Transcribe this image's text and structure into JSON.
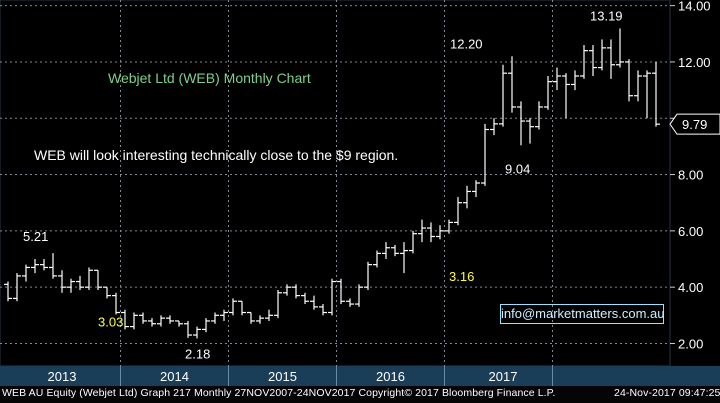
{
  "chart_data": {
    "type": "ohlc",
    "title": "Webjet Ltd (WEB) Monthly Chart",
    "commentary": "WEB will look interesting technically close to the $9 region.",
    "ylim": [
      1.2,
      14.2
    ],
    "y_ticks": [
      "2.00",
      "4.00",
      "6.00",
      "8.00",
      "10.00",
      "12.00",
      "14.00"
    ],
    "x_categories": [
      "2013",
      "2014",
      "2015",
      "2016",
      "2017"
    ],
    "grid": true,
    "last_price": "9.79",
    "annotations": [
      {
        "text": "5.21",
        "value": 5.21,
        "color": "#ffffff"
      },
      {
        "text": "3.03",
        "value": 3.03,
        "color": "#ffff33"
      },
      {
        "text": "2.18",
        "value": 2.18,
        "color": "#ffffff"
      },
      {
        "text": "12.20",
        "value": 12.2,
        "color": "#ffffff"
      },
      {
        "text": "3.16",
        "value": 3.16,
        "color": "#ffff33"
      },
      {
        "text": "9.04",
        "value": 9.04,
        "color": "#ffffff"
      },
      {
        "text": "13.19",
        "value": 13.19,
        "color": "#ffffff"
      }
    ],
    "bars": [
      [
        4.1,
        4.2,
        3.5,
        3.6
      ],
      [
        3.6,
        4.5,
        3.5,
        4.4
      ],
      [
        4.4,
        4.8,
        4.2,
        4.7
      ],
      [
        4.7,
        5.0,
        4.5,
        4.8
      ],
      [
        4.8,
        5.0,
        4.6,
        4.7
      ],
      [
        4.7,
        5.21,
        4.3,
        4.4
      ],
      [
        4.4,
        4.6,
        3.8,
        4.0
      ],
      [
        4.0,
        4.3,
        3.8,
        4.2
      ],
      [
        4.2,
        4.4,
        3.9,
        4.0
      ],
      [
        4.0,
        4.7,
        3.9,
        4.6
      ],
      [
        4.6,
        4.6,
        3.9,
        4.0
      ],
      [
        4.0,
        4.0,
        3.6,
        3.7
      ],
      [
        3.7,
        3.8,
        3.03,
        3.1
      ],
      [
        3.1,
        3.2,
        2.5,
        2.6
      ],
      [
        2.6,
        3.1,
        2.5,
        3.0
      ],
      [
        3.0,
        3.1,
        2.7,
        2.8
      ],
      [
        2.8,
        2.9,
        2.6,
        2.7
      ],
      [
        2.7,
        3.0,
        2.6,
        2.9
      ],
      [
        2.9,
        3.0,
        2.7,
        2.8
      ],
      [
        2.8,
        2.8,
        2.6,
        2.7
      ],
      [
        2.7,
        2.8,
        2.2,
        2.3
      ],
      [
        2.3,
        2.6,
        2.18,
        2.5
      ],
      [
        2.5,
        2.9,
        2.4,
        2.8
      ],
      [
        2.8,
        3.1,
        2.7,
        3.0
      ],
      [
        3.0,
        3.2,
        2.8,
        3.1
      ],
      [
        3.1,
        3.6,
        3.0,
        3.5
      ],
      [
        3.5,
        3.5,
        3.0,
        3.1
      ],
      [
        3.1,
        3.1,
        2.7,
        2.8
      ],
      [
        2.8,
        3.0,
        2.7,
        2.9
      ],
      [
        2.9,
        3.2,
        2.8,
        3.0
      ],
      [
        3.0,
        3.9,
        2.9,
        3.8
      ],
      [
        3.8,
        4.1,
        3.7,
        4.0
      ],
      [
        4.0,
        4.1,
        3.6,
        3.7
      ],
      [
        3.7,
        3.8,
        3.4,
        3.5
      ],
      [
        3.5,
        3.7,
        3.2,
        3.3
      ],
      [
        3.3,
        3.4,
        3.0,
        3.1
      ],
      [
        3.1,
        4.3,
        3.0,
        4.2
      ],
      [
        4.2,
        4.3,
        3.4,
        3.5
      ],
      [
        3.5,
        3.6,
        3.3,
        3.4
      ],
      [
        3.4,
        4.1,
        3.3,
        4.0
      ],
      [
        4.0,
        4.9,
        3.9,
        4.8
      ],
      [
        4.8,
        5.3,
        4.7,
        5.2
      ],
      [
        5.2,
        5.6,
        5.0,
        5.4
      ],
      [
        5.4,
        5.5,
        5.1,
        5.2
      ],
      [
        5.2,
        5.6,
        4.5,
        5.3
      ],
      [
        5.3,
        6.0,
        5.2,
        5.9
      ],
      [
        5.9,
        6.4,
        5.6,
        6.1
      ],
      [
        6.1,
        6.3,
        5.6,
        5.8
      ],
      [
        5.8,
        6.2,
        5.7,
        6.0
      ],
      [
        6.0,
        6.4,
        5.9,
        6.3
      ],
      [
        6.3,
        7.2,
        6.2,
        7.0
      ],
      [
        7.0,
        7.6,
        6.8,
        7.4
      ],
      [
        7.4,
        7.8,
        7.2,
        7.7
      ],
      [
        7.7,
        9.8,
        7.6,
        9.6
      ],
      [
        9.6,
        10.0,
        9.4,
        9.8
      ],
      [
        9.8,
        11.9,
        9.7,
        11.6
      ],
      [
        11.6,
        12.2,
        10.2,
        10.4
      ],
      [
        10.4,
        10.6,
        9.04,
        9.9
      ],
      [
        9.9,
        10.0,
        9.1,
        9.7
      ],
      [
        9.7,
        10.6,
        9.6,
        10.4
      ],
      [
        10.4,
        11.5,
        10.3,
        11.3
      ],
      [
        11.3,
        11.8,
        11.0,
        11.5
      ],
      [
        11.5,
        11.6,
        10.0,
        11.2
      ],
      [
        11.2,
        11.7,
        11.0,
        11.5
      ],
      [
        11.5,
        12.6,
        11.4,
        12.4
      ],
      [
        12.4,
        12.6,
        11.5,
        11.8
      ],
      [
        11.8,
        12.8,
        11.7,
        12.5
      ],
      [
        12.5,
        12.8,
        11.4,
        11.9
      ],
      [
        11.9,
        13.19,
        11.8,
        12.0
      ],
      [
        12.0,
        12.1,
        10.6,
        10.8
      ],
      [
        10.8,
        11.7,
        10.6,
        11.5
      ],
      [
        11.5,
        11.7,
        10.0,
        11.6
      ],
      [
        11.6,
        12.0,
        9.7,
        9.79
      ]
    ]
  },
  "footer": {
    "left": "WEB AU Equity (Webjet Ltd) Graph 217  Monthly 27NOV2007-24NOV2017   Copyright© 2017 Bloomberg Finance L.P.",
    "right": "24-Nov-2017 09:47:25"
  },
  "contact": {
    "email": "info@marketmatters.com.au"
  },
  "colors": {
    "background": "#000000",
    "bars": "#ffffff",
    "grid": "#7f8a95",
    "title": "#7fd08a",
    "highlight": "#ffff33",
    "axis_band": "#1a3e58"
  }
}
